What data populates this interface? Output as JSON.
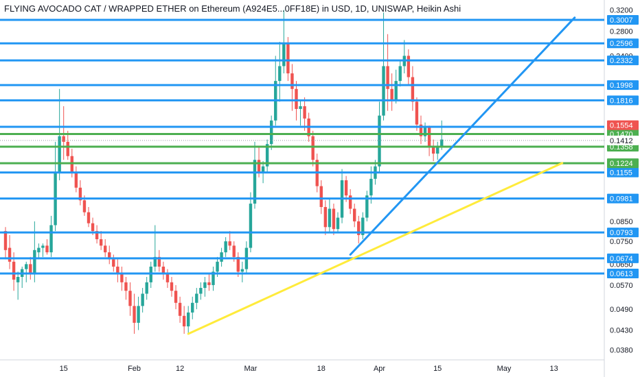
{
  "title": "FLYING AVOCADO CAT / WRAPPED ETHER on Ethereum (A924E5...0FF18E) in USD, 1D, UNISWAP, Heikin Ashi",
  "colors": {
    "up": "#26a69a",
    "down": "#ef5350",
    "blue_line": "#2196f3",
    "green_line": "#4caf50",
    "yellow_line": "#ffeb3b",
    "price_tag_red": "#ef5350",
    "axis_text": "#131722"
  },
  "chart_data": {
    "type": "candlestick",
    "style": "Heikin Ashi",
    "y_scale": "log",
    "y_tick_labels": [
      "0.3200",
      "0.2800",
      "0.2400",
      "0.0850",
      "0.0750",
      "0.0650",
      "0.0570",
      "0.0490",
      "0.0430",
      "0.0380"
    ],
    "x_tick_labels": [
      {
        "label": "15",
        "date": "2021-01-15"
      },
      {
        "label": "Feb",
        "date": "2021-02-01"
      },
      {
        "label": "12",
        "date": "2021-02-12"
      },
      {
        "label": "Mar",
        "date": "2021-03-01"
      },
      {
        "label": "18",
        "date": "2021-03-18"
      },
      {
        "label": "Apr",
        "date": "2021-04-01"
      },
      {
        "label": "15",
        "date": "2021-04-15"
      },
      {
        "label": "May",
        "date": "2021-05-01"
      },
      {
        "label": "13",
        "date": "2021-05-13"
      }
    ],
    "blue_levels": [
      "0.3007",
      "0.2596",
      "0.2332",
      "0.1998",
      "0.1816",
      "0.1538",
      "0.1155",
      "0.0981",
      "0.0793",
      "0.0674",
      "0.0613"
    ],
    "green_levels": [
      "0.1470",
      "0.1358",
      "0.1224"
    ],
    "current_price": "0.1554",
    "last_level_price": "0.1412",
    "trendlines": [
      {
        "color": "yellow",
        "from": {
          "date": "2021-02-14",
          "price": 0.042
        },
        "to": {
          "date": "2021-05-15",
          "price": 0.1225
        }
      },
      {
        "color": "blue",
        "from": {
          "date": "2021-03-25",
          "price": 0.069
        },
        "to": {
          "date": "2021-05-18",
          "price": 0.305
        }
      }
    ],
    "candles": [
      {
        "date": "2021-01-01",
        "o": 0.08,
        "h": 0.082,
        "l": 0.067,
        "c": 0.071
      },
      {
        "date": "2021-01-02",
        "o": 0.072,
        "h": 0.078,
        "l": 0.063,
        "c": 0.066
      },
      {
        "date": "2021-01-03",
        "o": 0.066,
        "h": 0.07,
        "l": 0.055,
        "c": 0.059
      },
      {
        "date": "2021-01-04",
        "o": 0.058,
        "h": 0.062,
        "l": 0.052,
        "c": 0.06
      },
      {
        "date": "2021-01-05",
        "o": 0.06,
        "h": 0.064,
        "l": 0.056,
        "c": 0.063
      },
      {
        "date": "2021-01-06",
        "o": 0.063,
        "h": 0.066,
        "l": 0.058,
        "c": 0.065
      },
      {
        "date": "2021-01-07",
        "o": 0.065,
        "h": 0.068,
        "l": 0.059,
        "c": 0.061
      },
      {
        "date": "2021-01-08",
        "o": 0.061,
        "h": 0.085,
        "l": 0.058,
        "c": 0.071
      },
      {
        "date": "2021-01-09",
        "o": 0.07,
        "h": 0.074,
        "l": 0.067,
        "c": 0.072
      },
      {
        "date": "2021-01-10",
        "o": 0.072,
        "h": 0.074,
        "l": 0.068,
        "c": 0.073
      },
      {
        "date": "2021-01-11",
        "o": 0.073,
        "h": 0.076,
        "l": 0.069,
        "c": 0.07
      },
      {
        "date": "2021-01-12",
        "o": 0.07,
        "h": 0.088,
        "l": 0.068,
        "c": 0.083
      },
      {
        "date": "2021-01-13",
        "o": 0.083,
        "h": 0.14,
        "l": 0.08,
        "c": 0.115
      },
      {
        "date": "2021-01-14",
        "o": 0.115,
        "h": 0.195,
        "l": 0.11,
        "c": 0.145
      },
      {
        "date": "2021-01-15",
        "o": 0.145,
        "h": 0.175,
        "l": 0.125,
        "c": 0.14
      },
      {
        "date": "2021-01-16",
        "o": 0.14,
        "h": 0.15,
        "l": 0.125,
        "c": 0.128
      },
      {
        "date": "2021-01-17",
        "o": 0.128,
        "h": 0.134,
        "l": 0.112,
        "c": 0.115
      },
      {
        "date": "2021-01-18",
        "o": 0.115,
        "h": 0.12,
        "l": 0.102,
        "c": 0.105
      },
      {
        "date": "2021-01-19",
        "o": 0.105,
        "h": 0.11,
        "l": 0.094,
        "c": 0.097
      },
      {
        "date": "2021-01-20",
        "o": 0.097,
        "h": 0.1,
        "l": 0.088,
        "c": 0.09
      },
      {
        "date": "2021-01-21",
        "o": 0.09,
        "h": 0.093,
        "l": 0.082,
        "c": 0.084
      },
      {
        "date": "2021-01-22",
        "o": 0.084,
        "h": 0.087,
        "l": 0.078,
        "c": 0.08
      },
      {
        "date": "2021-01-23",
        "o": 0.08,
        "h": 0.083,
        "l": 0.074,
        "c": 0.076
      },
      {
        "date": "2021-01-24",
        "o": 0.076,
        "h": 0.08,
        "l": 0.071,
        "c": 0.073
      },
      {
        "date": "2021-01-25",
        "o": 0.073,
        "h": 0.076,
        "l": 0.068,
        "c": 0.07
      },
      {
        "date": "2021-01-26",
        "o": 0.07,
        "h": 0.073,
        "l": 0.065,
        "c": 0.067
      },
      {
        "date": "2021-01-27",
        "o": 0.067,
        "h": 0.069,
        "l": 0.062,
        "c": 0.064
      },
      {
        "date": "2021-01-28",
        "o": 0.064,
        "h": 0.067,
        "l": 0.058,
        "c": 0.061
      },
      {
        "date": "2021-01-29",
        "o": 0.061,
        "h": 0.064,
        "l": 0.055,
        "c": 0.058
      },
      {
        "date": "2021-01-30",
        "o": 0.058,
        "h": 0.06,
        "l": 0.052,
        "c": 0.055
      },
      {
        "date": "2021-01-31",
        "o": 0.055,
        "h": 0.058,
        "l": 0.047,
        "c": 0.05
      },
      {
        "date": "2021-02-01",
        "o": 0.05,
        "h": 0.054,
        "l": 0.042,
        "c": 0.045
      },
      {
        "date": "2021-02-02",
        "o": 0.045,
        "h": 0.053,
        "l": 0.043,
        "c": 0.05
      },
      {
        "date": "2021-02-03",
        "o": 0.05,
        "h": 0.056,
        "l": 0.048,
        "c": 0.054
      },
      {
        "date": "2021-02-04",
        "o": 0.054,
        "h": 0.06,
        "l": 0.052,
        "c": 0.058
      },
      {
        "date": "2021-02-05",
        "o": 0.058,
        "h": 0.066,
        "l": 0.056,
        "c": 0.064
      },
      {
        "date": "2021-02-06",
        "o": 0.064,
        "h": 0.083,
        "l": 0.062,
        "c": 0.068
      },
      {
        "date": "2021-02-07",
        "o": 0.068,
        "h": 0.071,
        "l": 0.062,
        "c": 0.064
      },
      {
        "date": "2021-02-08",
        "o": 0.064,
        "h": 0.066,
        "l": 0.059,
        "c": 0.061
      },
      {
        "date": "2021-02-09",
        "o": 0.061,
        "h": 0.063,
        "l": 0.056,
        "c": 0.058
      },
      {
        "date": "2021-02-10",
        "o": 0.058,
        "h": 0.06,
        "l": 0.053,
        "c": 0.055
      },
      {
        "date": "2021-02-11",
        "o": 0.055,
        "h": 0.057,
        "l": 0.049,
        "c": 0.051
      },
      {
        "date": "2021-02-12",
        "o": 0.051,
        "h": 0.053,
        "l": 0.045,
        "c": 0.047
      },
      {
        "date": "2021-02-13",
        "o": 0.047,
        "h": 0.05,
        "l": 0.042,
        "c": 0.044
      },
      {
        "date": "2021-02-14",
        "o": 0.044,
        "h": 0.05,
        "l": 0.042,
        "c": 0.048
      },
      {
        "date": "2021-02-15",
        "o": 0.048,
        "h": 0.053,
        "l": 0.046,
        "c": 0.051
      },
      {
        "date": "2021-02-16",
        "o": 0.051,
        "h": 0.056,
        "l": 0.049,
        "c": 0.054
      },
      {
        "date": "2021-02-17",
        "o": 0.054,
        "h": 0.058,
        "l": 0.052,
        "c": 0.056
      },
      {
        "date": "2021-02-18",
        "o": 0.056,
        "h": 0.06,
        "l": 0.053,
        "c": 0.058
      },
      {
        "date": "2021-02-19",
        "o": 0.058,
        "h": 0.061,
        "l": 0.055,
        "c": 0.057
      },
      {
        "date": "2021-02-20",
        "o": 0.057,
        "h": 0.064,
        "l": 0.055,
        "c": 0.062
      },
      {
        "date": "2021-02-21",
        "o": 0.062,
        "h": 0.068,
        "l": 0.06,
        "c": 0.066
      },
      {
        "date": "2021-02-22",
        "o": 0.066,
        "h": 0.072,
        "l": 0.064,
        "c": 0.07
      },
      {
        "date": "2021-02-23",
        "o": 0.07,
        "h": 0.077,
        "l": 0.068,
        "c": 0.075
      },
      {
        "date": "2021-02-24",
        "o": 0.075,
        "h": 0.08,
        "l": 0.071,
        "c": 0.073
      },
      {
        "date": "2021-02-25",
        "o": 0.073,
        "h": 0.075,
        "l": 0.066,
        "c": 0.068
      },
      {
        "date": "2021-02-26",
        "o": 0.068,
        "h": 0.07,
        "l": 0.06,
        "c": 0.062
      },
      {
        "date": "2021-02-27",
        "o": 0.062,
        "h": 0.066,
        "l": 0.058,
        "c": 0.063
      },
      {
        "date": "2021-02-28",
        "o": 0.063,
        "h": 0.075,
        "l": 0.061,
        "c": 0.072
      },
      {
        "date": "2021-03-01",
        "o": 0.072,
        "h": 0.102,
        "l": 0.07,
        "c": 0.095
      },
      {
        "date": "2021-03-02",
        "o": 0.095,
        "h": 0.14,
        "l": 0.092,
        "c": 0.125
      },
      {
        "date": "2021-03-03",
        "o": 0.125,
        "h": 0.135,
        "l": 0.112,
        "c": 0.116
      },
      {
        "date": "2021-03-04",
        "o": 0.116,
        "h": 0.124,
        "l": 0.108,
        "c": 0.12
      },
      {
        "date": "2021-03-05",
        "o": 0.12,
        "h": 0.142,
        "l": 0.116,
        "c": 0.138
      },
      {
        "date": "2021-03-06",
        "o": 0.138,
        "h": 0.165,
        "l": 0.133,
        "c": 0.16
      },
      {
        "date": "2021-03-07",
        "o": 0.16,
        "h": 0.24,
        "l": 0.155,
        "c": 0.205
      },
      {
        "date": "2021-03-08",
        "o": 0.205,
        "h": 0.262,
        "l": 0.18,
        "c": 0.225
      },
      {
        "date": "2021-03-09",
        "o": 0.225,
        "h": 0.32,
        "l": 0.215,
        "c": 0.26
      },
      {
        "date": "2021-03-10",
        "o": 0.26,
        "h": 0.27,
        "l": 0.205,
        "c": 0.215
      },
      {
        "date": "2021-03-11",
        "o": 0.215,
        "h": 0.228,
        "l": 0.17,
        "c": 0.195
      },
      {
        "date": "2021-03-12",
        "o": 0.195,
        "h": 0.205,
        "l": 0.16,
        "c": 0.172
      },
      {
        "date": "2021-03-13",
        "o": 0.172,
        "h": 0.182,
        "l": 0.155,
        "c": 0.175
      },
      {
        "date": "2021-03-14",
        "o": 0.175,
        "h": 0.185,
        "l": 0.15,
        "c": 0.162
      },
      {
        "date": "2021-03-15",
        "o": 0.162,
        "h": 0.168,
        "l": 0.14,
        "c": 0.145
      },
      {
        "date": "2021-03-16",
        "o": 0.145,
        "h": 0.15,
        "l": 0.12,
        "c": 0.125
      },
      {
        "date": "2021-03-17",
        "o": 0.125,
        "h": 0.13,
        "l": 0.102,
        "c": 0.106
      },
      {
        "date": "2021-03-18",
        "o": 0.106,
        "h": 0.11,
        "l": 0.089,
        "c": 0.093
      },
      {
        "date": "2021-03-19",
        "o": 0.093,
        "h": 0.097,
        "l": 0.078,
        "c": 0.082
      },
      {
        "date": "2021-03-20",
        "o": 0.082,
        "h": 0.098,
        "l": 0.079,
        "c": 0.092
      },
      {
        "date": "2021-03-21",
        "o": 0.092,
        "h": 0.095,
        "l": 0.078,
        "c": 0.081
      },
      {
        "date": "2021-03-22",
        "o": 0.081,
        "h": 0.09,
        "l": 0.079,
        "c": 0.087
      },
      {
        "date": "2021-03-23",
        "o": 0.087,
        "h": 0.118,
        "l": 0.084,
        "c": 0.11
      },
      {
        "date": "2021-03-24",
        "o": 0.11,
        "h": 0.113,
        "l": 0.096,
        "c": 0.1
      },
      {
        "date": "2021-03-25",
        "o": 0.1,
        "h": 0.104,
        "l": 0.089,
        "c": 0.092
      },
      {
        "date": "2021-03-26",
        "o": 0.092,
        "h": 0.095,
        "l": 0.082,
        "c": 0.085
      },
      {
        "date": "2021-03-27",
        "o": 0.085,
        "h": 0.088,
        "l": 0.074,
        "c": 0.078
      },
      {
        "date": "2021-03-28",
        "o": 0.078,
        "h": 0.09,
        "l": 0.076,
        "c": 0.087
      },
      {
        "date": "2021-03-29",
        "o": 0.087,
        "h": 0.103,
        "l": 0.085,
        "c": 0.1
      },
      {
        "date": "2021-03-30",
        "o": 0.1,
        "h": 0.12,
        "l": 0.095,
        "c": 0.111
      },
      {
        "date": "2021-03-31",
        "o": 0.111,
        "h": 0.125,
        "l": 0.107,
        "c": 0.12
      },
      {
        "date": "2021-04-01",
        "o": 0.12,
        "h": 0.18,
        "l": 0.116,
        "c": 0.165
      },
      {
        "date": "2021-04-02",
        "o": 0.165,
        "h": 0.315,
        "l": 0.16,
        "c": 0.225
      },
      {
        "date": "2021-04-03",
        "o": 0.225,
        "h": 0.275,
        "l": 0.17,
        "c": 0.195
      },
      {
        "date": "2021-04-04",
        "o": 0.195,
        "h": 0.215,
        "l": 0.17,
        "c": 0.182
      },
      {
        "date": "2021-04-05",
        "o": 0.182,
        "h": 0.22,
        "l": 0.178,
        "c": 0.205
      },
      {
        "date": "2021-04-06",
        "o": 0.205,
        "h": 0.232,
        "l": 0.198,
        "c": 0.225
      },
      {
        "date": "2021-04-07",
        "o": 0.225,
        "h": 0.265,
        "l": 0.215,
        "c": 0.24
      },
      {
        "date": "2021-04-08",
        "o": 0.24,
        "h": 0.25,
        "l": 0.2,
        "c": 0.21
      },
      {
        "date": "2021-04-09",
        "o": 0.21,
        "h": 0.225,
        "l": 0.17,
        "c": 0.18
      },
      {
        "date": "2021-04-10",
        "o": 0.18,
        "h": 0.185,
        "l": 0.15,
        "c": 0.156
      },
      {
        "date": "2021-04-11",
        "o": 0.156,
        "h": 0.165,
        "l": 0.138,
        "c": 0.145
      },
      {
        "date": "2021-04-12",
        "o": 0.145,
        "h": 0.158,
        "l": 0.14,
        "c": 0.153
      },
      {
        "date": "2021-04-13",
        "o": 0.153,
        "h": 0.155,
        "l": 0.128,
        "c": 0.136
      },
      {
        "date": "2021-04-14",
        "o": 0.136,
        "h": 0.142,
        "l": 0.124,
        "c": 0.13
      },
      {
        "date": "2021-04-15",
        "o": 0.13,
        "h": 0.14,
        "l": 0.125,
        "c": 0.135
      },
      {
        "date": "2021-04-16",
        "o": 0.135,
        "h": 0.16,
        "l": 0.133,
        "c": 0.142
      }
    ]
  }
}
